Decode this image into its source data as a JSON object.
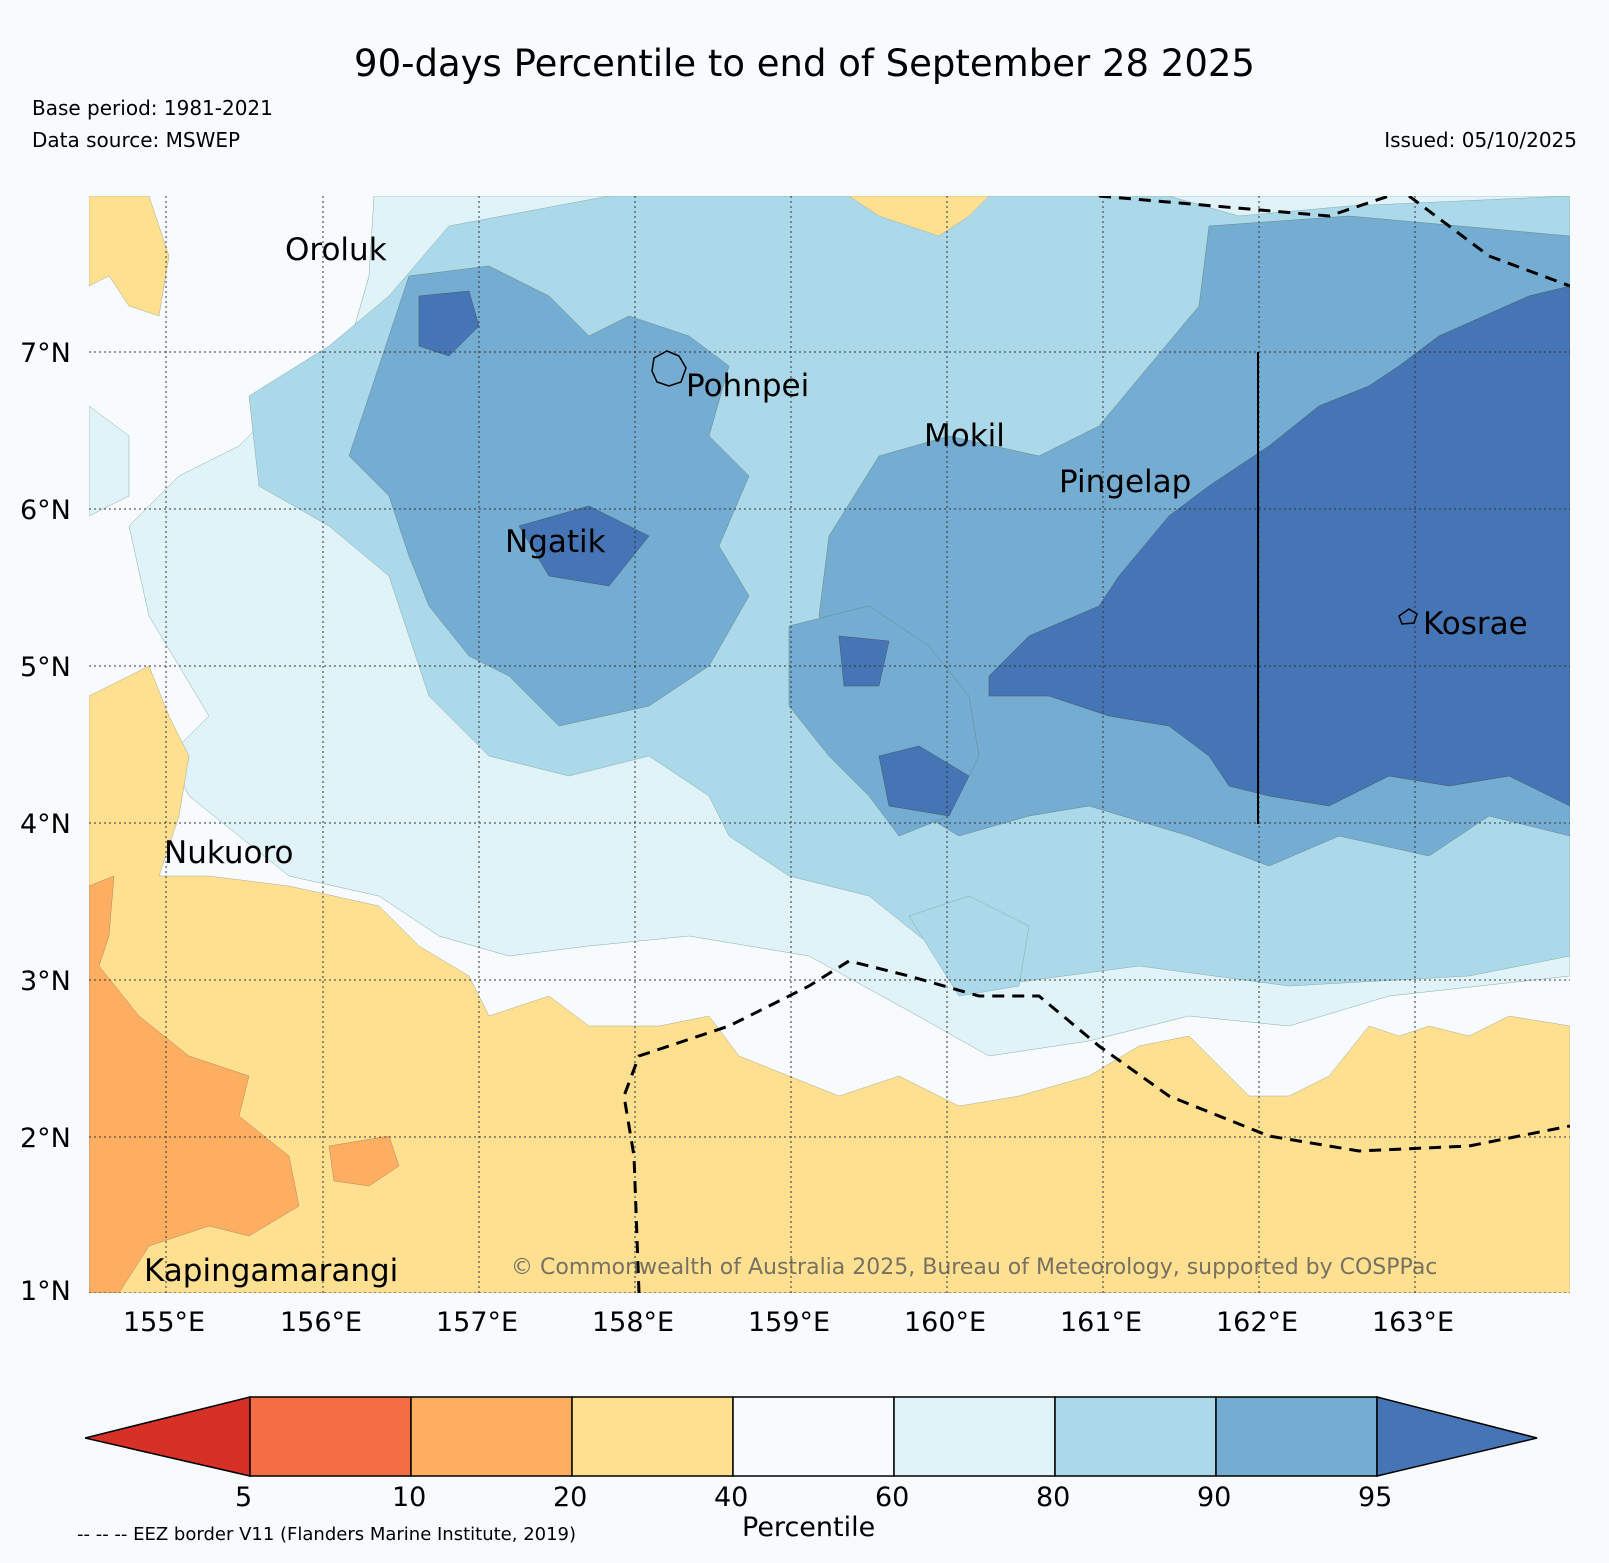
{
  "title": "90-days Percentile to end of September 28 2025",
  "base_period": "Base period: 1981-2021",
  "data_source": "Data source: MSWEP",
  "issued": "Issued: 05/10/2025",
  "copyright": "© Commonwealth of Australia 2025, Bureau of Meteorology, supported by COSPPac",
  "lat_labels": [
    "7°N",
    "6°N",
    "5°N",
    "4°N",
    "3°N",
    "2°N",
    "1°N"
  ],
  "lon_labels": [
    "155°E",
    "156°E",
    "157°E",
    "158°E",
    "159°E",
    "160°E",
    "161°E",
    "162°E",
    "163°E"
  ],
  "islands": [
    "Oroluk",
    "Pohnpei",
    "Mokil",
    "Pingelap",
    "Ngatik",
    "Kosrae",
    "Nukuoro",
    "Kapingamarangi"
  ],
  "colorbar": {
    "label": "Percentile",
    "ticks": [
      "5",
      "10",
      "20",
      "40",
      "60",
      "80",
      "90",
      "95"
    ],
    "colors": [
      "#d73027",
      "#f46d43",
      "#fdae61",
      "#fee090",
      "#f7fbfd",
      "#e0f3f8",
      "#abd9e9",
      "#74add1",
      "#4575b4"
    ]
  },
  "legend_note": "-- -- -- EEZ border V11 (Flanders Marine Institute, 2019)"
}
